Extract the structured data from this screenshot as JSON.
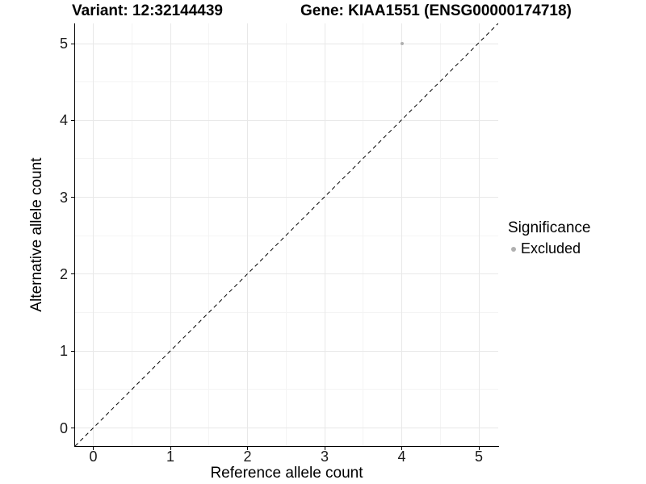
{
  "titles": {
    "variant": "Variant: 12:32144439",
    "gene": "Gene: KIAA1551 (ENSG00000174718)"
  },
  "axes": {
    "x": {
      "label": "Reference allele count"
    },
    "y": {
      "label": "Alternative allele count"
    }
  },
  "legend": {
    "title": "Significance",
    "items": [
      {
        "label": "Excluded",
        "color": "#b0b0b0"
      }
    ]
  },
  "chart_data": {
    "type": "scatter",
    "title_left": "Variant: 12:32144439",
    "title_right": "Gene: KIAA1551 (ENSG00000174718)",
    "xlabel": "Reference allele count",
    "ylabel": "Alternative allele count",
    "xlim": [
      -0.25,
      5.25
    ],
    "ylim": [
      -0.25,
      5.25
    ],
    "x_ticks": [
      0,
      1,
      2,
      3,
      4,
      5
    ],
    "y_ticks": [
      0,
      1,
      2,
      3,
      4,
      5
    ],
    "grid": "major+minor",
    "legend_position": "right",
    "series": [
      {
        "name": "Excluded",
        "color": "#b0b0b0",
        "points": [
          [
            4,
            5
          ]
        ]
      }
    ],
    "reference_line": {
      "equation": "y = x",
      "style": "dashed",
      "color": "#000000"
    }
  },
  "colors": {
    "background": "#ffffff",
    "grid_major": "#e8e8e8",
    "grid_minor": "#f4f4f4",
    "axis_line": "#000000",
    "tick_text": "#1a1a1a",
    "dash_pattern": "5,4"
  }
}
